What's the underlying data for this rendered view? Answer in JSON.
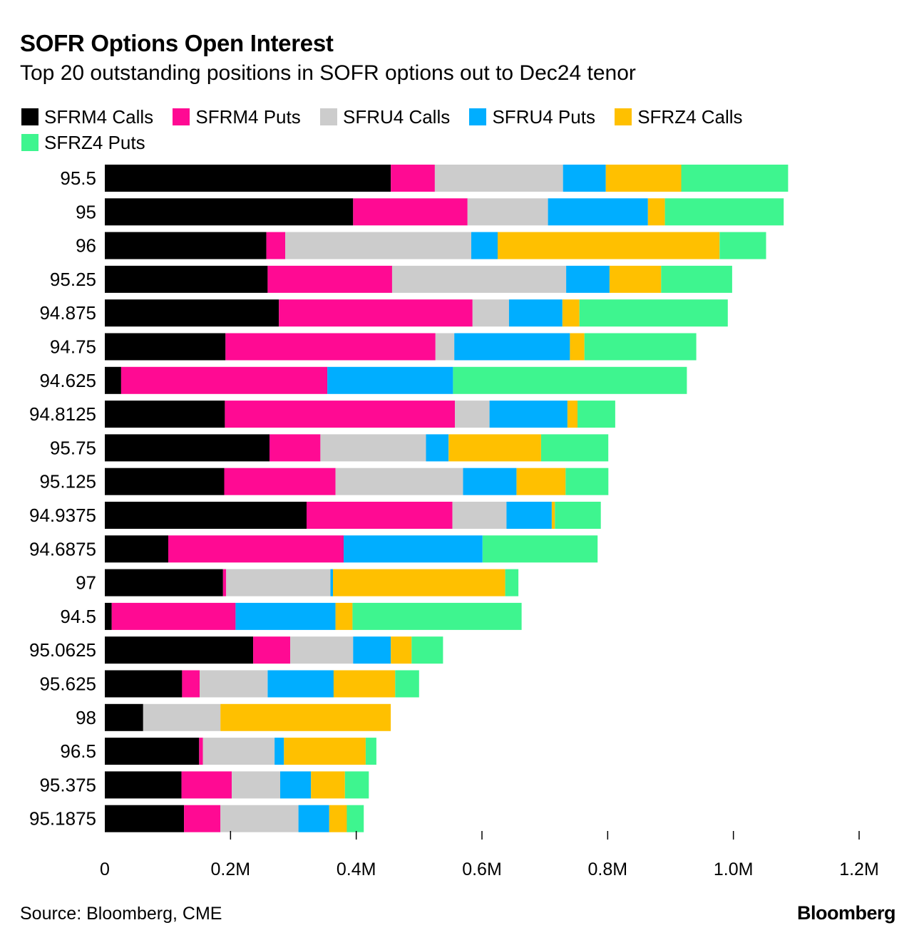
{
  "header": {
    "title": "SOFR Options Open Interest",
    "subtitle": "Top 20 outstanding positions in SOFR options out to Dec24 tenor"
  },
  "legend": [
    {
      "label": "SFRM4 Calls",
      "color": "#000000"
    },
    {
      "label": "SFRM4 Puts",
      "color": "#ff0a93"
    },
    {
      "label": "SFRU4 Calls",
      "color": "#cccccc"
    },
    {
      "label": "SFRU4 Puts",
      "color": "#00aeff"
    },
    {
      "label": "SFRZ4 Calls",
      "color": "#ffc000"
    },
    {
      "label": "SFRZ4 Puts",
      "color": "#3ef58f"
    }
  ],
  "footer": {
    "source": "Source: Bloomberg, CME",
    "brand": "Bloomberg"
  },
  "chart_data": {
    "type": "bar",
    "orientation": "horizontal",
    "stacked": true,
    "title": "SOFR Options Open Interest",
    "subtitle": "Top 20 outstanding positions in SOFR options out to Dec24 tenor",
    "xlabel": "",
    "ylabel": "",
    "xlim": [
      0,
      1200000
    ],
    "x_ticks": [
      0,
      200000,
      400000,
      600000,
      800000,
      1000000,
      1200000
    ],
    "x_tick_labels": [
      "0",
      "0.2M",
      "0.4M",
      "0.6M",
      "0.8M",
      "1.0M",
      "1.2M"
    ],
    "categories": [
      "95.5",
      "95",
      "96",
      "95.25",
      "94.875",
      "94.75",
      "94.625",
      "94.8125",
      "95.75",
      "95.125",
      "94.9375",
      "94.6875",
      "97",
      "94.5",
      "95.0625",
      "95.625",
      "98",
      "96.5",
      "95.375",
      "95.1875"
    ],
    "series": [
      {
        "name": "SFRM4 Calls",
        "color": "#000000",
        "values": [
          455000,
          395000,
          257000,
          259000,
          277000,
          192000,
          26000,
          191000,
          262000,
          190000,
          321000,
          101000,
          188000,
          11000,
          236000,
          123000,
          61000,
          150000,
          122000,
          126000
        ]
      },
      {
        "name": "SFRM4 Puts",
        "color": "#ff0a93",
        "values": [
          70000,
          182000,
          30000,
          198000,
          308000,
          334000,
          328000,
          366000,
          81000,
          177000,
          232000,
          279000,
          5000,
          197000,
          59000,
          28000,
          0,
          6000,
          80000,
          58000
        ]
      },
      {
        "name": "SFRU4 Calls",
        "color": "#cccccc",
        "values": [
          204000,
          128000,
          296000,
          277000,
          58000,
          30000,
          0,
          55000,
          168000,
          203000,
          86000,
          0,
          166000,
          0,
          100000,
          108000,
          123000,
          114000,
          77000,
          124000
        ]
      },
      {
        "name": "SFRU4 Puts",
        "color": "#00aeff",
        "values": [
          68000,
          159000,
          42000,
          69000,
          85000,
          184000,
          200000,
          124000,
          36000,
          85000,
          72000,
          221000,
          4000,
          159000,
          60000,
          105000,
          0,
          15000,
          49000,
          49000
        ]
      },
      {
        "name": "SFRZ4 Calls",
        "color": "#ffc000",
        "values": [
          120000,
          27000,
          353000,
          82000,
          27000,
          23000,
          0,
          16000,
          147000,
          78000,
          5000,
          0,
          274000,
          27000,
          33000,
          98000,
          271000,
          130000,
          54000,
          28000
        ]
      },
      {
        "name": "SFRZ4 Puts",
        "color": "#3ef58f",
        "values": [
          170000,
          189000,
          74000,
          113000,
          236000,
          178000,
          372000,
          60000,
          107000,
          68000,
          73000,
          183000,
          21000,
          269000,
          50000,
          38000,
          0,
          17000,
          38000,
          27000
        ]
      }
    ]
  }
}
